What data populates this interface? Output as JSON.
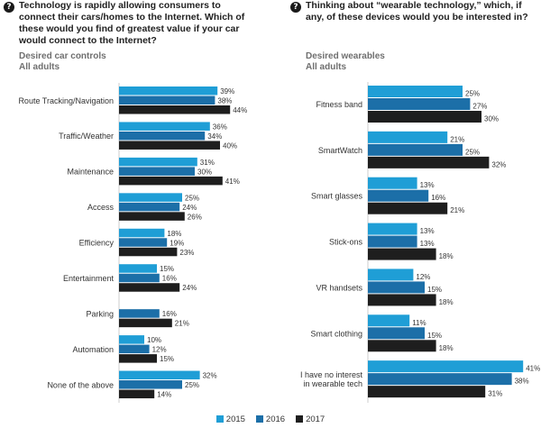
{
  "chart_data": [
    {
      "type": "bar",
      "title": "Technology is rapidly allowing consumers to connect their cars/homes to the Internet. Which of these would you find of greatest value if your car would connect to the Internet?",
      "subtitle": "Desired car controls",
      "subtitle2": "All adults",
      "orientation": "horizontal",
      "value_suffix": "%",
      "xlim": [
        0,
        50
      ],
      "categories": [
        "Route Tracking/Navigation",
        "Traffic/Weather",
        "Maintenance",
        "Access",
        "Efficiency",
        "Entertainment",
        "Parking",
        "Automation",
        "None of the above"
      ],
      "series": [
        {
          "name": "2015",
          "values": [
            39,
            36,
            31,
            25,
            18,
            15,
            null,
            10,
            32
          ]
        },
        {
          "name": "2016",
          "values": [
            38,
            34,
            30,
            24,
            19,
            16,
            16,
            12,
            25
          ]
        },
        {
          "name": "2017",
          "values": [
            44,
            40,
            41,
            26,
            23,
            24,
            21,
            15,
            14
          ]
        }
      ]
    },
    {
      "type": "bar",
      "title": "Thinking about “wearable technology,” which, if any, of these devices would you be interested in?",
      "subtitle": "Desired wearables",
      "subtitle2": "All adults",
      "orientation": "horizontal",
      "value_suffix": "%",
      "xlim": [
        0,
        50
      ],
      "categories": [
        "Fitness band",
        "SmartWatch",
        "Smart glasses",
        "Stick-ons",
        "VR handsets",
        "Smart clothing",
        "I have no interest in wearable tech"
      ],
      "series": [
        {
          "name": "2015",
          "values": [
            25,
            21,
            13,
            13,
            12,
            11,
            41
          ]
        },
        {
          "name": "2016",
          "values": [
            27,
            25,
            16,
            13,
            15,
            15,
            38
          ]
        },
        {
          "name": "2017",
          "values": [
            30,
            32,
            21,
            18,
            18,
            18,
            31
          ]
        }
      ]
    }
  ],
  "legend": {
    "items": [
      {
        "label": "2015",
        "color": "#1f9ed6"
      },
      {
        "label": "2016",
        "color": "#1c6fa8"
      },
      {
        "label": "2017",
        "color": "#1e1e1e"
      }
    ]
  },
  "icons": {
    "question": "?",
    "icon_name": "question-circle-icon"
  }
}
